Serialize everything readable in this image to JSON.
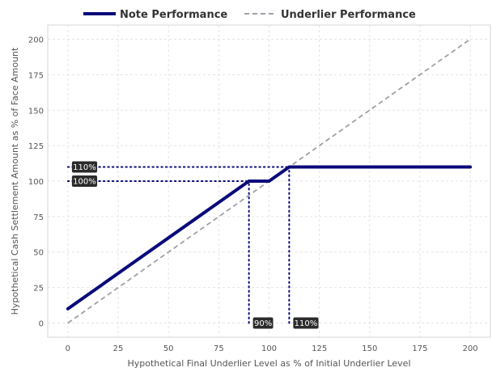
{
  "chart_data": {
    "type": "line",
    "xlabel": "Hypothetical Final Underlier Level as % of Initial Underlier Level",
    "ylabel": "Hypothetical Cash Settlement Amount as % of Face Amount",
    "xlim": [
      -10,
      210
    ],
    "ylim": [
      -10,
      210
    ],
    "x_ticks": [
      0,
      25,
      50,
      75,
      100,
      125,
      150,
      175,
      200
    ],
    "y_ticks": [
      0,
      25,
      50,
      75,
      100,
      125,
      150,
      175,
      200
    ],
    "grid": true,
    "legend": "top",
    "series": [
      {
        "name": "Note Performance",
        "color": "#0a0a7a",
        "style": "solid",
        "points": [
          [
            0,
            10
          ],
          [
            90,
            100
          ],
          [
            100,
            100
          ],
          [
            110,
            110
          ],
          [
            200,
            110
          ]
        ]
      },
      {
        "name": "Underlier Performance",
        "color": "#a0a0a8",
        "style": "dashed",
        "points": [
          [
            0,
            0
          ],
          [
            200,
            200
          ]
        ]
      }
    ],
    "annotations": [
      {
        "label": "110%",
        "axis": "y",
        "value": 110,
        "to_x": 110
      },
      {
        "label": "100%",
        "axis": "y",
        "value": 100,
        "to_x": 90
      },
      {
        "label": "90%",
        "axis": "x",
        "value": 90,
        "to_y": 100
      },
      {
        "label": "110%",
        "axis": "x",
        "value": 110,
        "to_y": 110
      }
    ]
  }
}
